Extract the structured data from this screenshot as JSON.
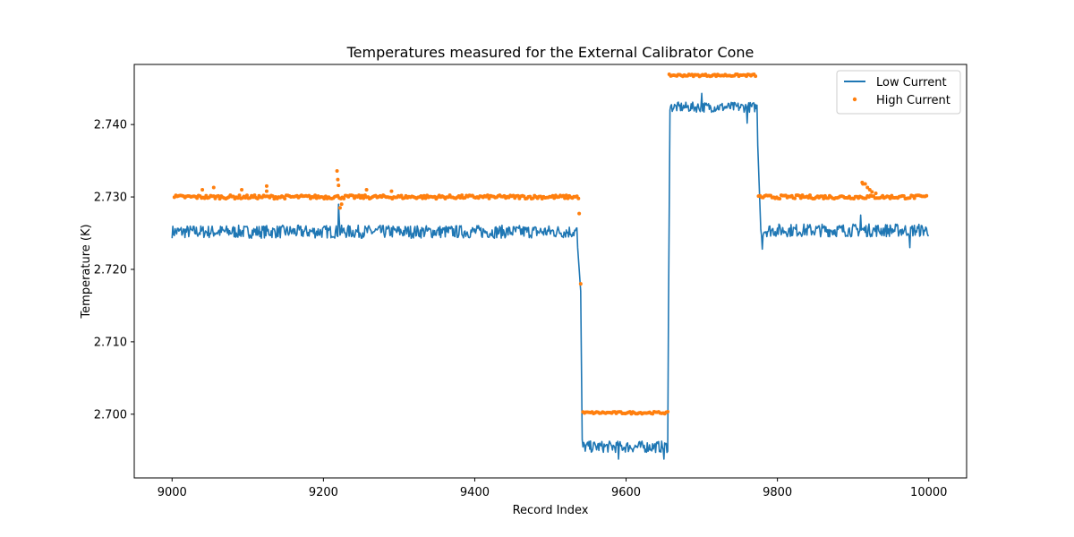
{
  "chart_data": {
    "type": "line",
    "title": "Temperatures measured for the External Calibrator Cone",
    "xlabel": "Record Index",
    "ylabel": "Temperature (K)",
    "xlim": [
      8950,
      10050
    ],
    "ylim": [
      2.6912,
      2.7483
    ],
    "xticks": [
      9000,
      9200,
      9400,
      9600,
      9800,
      10000
    ],
    "yticks": [
      2.7,
      2.71,
      2.72,
      2.73,
      2.74
    ],
    "ytick_labels": [
      "2.700",
      "2.710",
      "2.720",
      "2.730",
      "2.740"
    ],
    "legend_position": "top-right",
    "series": [
      {
        "name": "Low Current",
        "style": "line",
        "color": "#1f77b4",
        "x_start": 9000,
        "x_end": 10000,
        "segments": [
          {
            "from": 9000,
            "to": 9535,
            "mean": 2.7252,
            "noise": 0.0009
          },
          {
            "from": 9535,
            "to": 9540,
            "mean": 2.7245,
            "noise": 0.0005,
            "ramp_to": 2.717
          },
          {
            "from": 9540,
            "to": 9542,
            "mean": 2.717,
            "noise": 0.0,
            "ramp_to": 2.6965
          },
          {
            "from": 9542,
            "to": 9655,
            "mean": 2.6955,
            "noise": 0.0008
          },
          {
            "from": 9655,
            "to": 9658,
            "mean": 2.7,
            "noise": 0.0,
            "ramp_to": 2.742
          },
          {
            "from": 9658,
            "to": 9773,
            "mean": 2.7424,
            "noise": 0.0007
          },
          {
            "from": 9773,
            "to": 9778,
            "mean": 2.74,
            "noise": 0.0,
            "ramp_to": 2.7255
          },
          {
            "from": 9778,
            "to": 10000,
            "mean": 2.7254,
            "noise": 0.0009
          }
        ],
        "spikes": [
          {
            "x": 9220,
            "y": 2.729
          },
          {
            "x": 9221,
            "y": 2.7268
          },
          {
            "x": 9780,
            "y": 2.7228
          },
          {
            "x": 9700,
            "y": 2.7443
          },
          {
            "x": 9760,
            "y": 2.7402
          },
          {
            "x": 9590,
            "y": 2.6938
          },
          {
            "x": 9650,
            "y": 2.6938
          },
          {
            "x": 9910,
            "y": 2.7275
          },
          {
            "x": 9975,
            "y": 2.723
          }
        ]
      },
      {
        "name": "High Current",
        "style": "scatter",
        "color": "#ff7f0e",
        "x_start": 9003,
        "x_end": 9997,
        "segments": [
          {
            "from": 9003,
            "to": 9537,
            "mean": 2.73,
            "noise": 0.00025
          },
          {
            "from": 9543,
            "to": 9655,
            "mean": 2.7002,
            "noise": 0.00015
          },
          {
            "from": 9657,
            "to": 9772,
            "mean": 2.7468,
            "noise": 0.00015
          },
          {
            "from": 9775,
            "to": 9997,
            "mean": 2.73,
            "noise": 0.00025
          }
        ],
        "outliers": [
          {
            "x": 9218,
            "y": 2.7336
          },
          {
            "x": 9219,
            "y": 2.7324
          },
          {
            "x": 9220,
            "y": 2.7316
          },
          {
            "x": 9222,
            "y": 2.7285
          },
          {
            "x": 9224,
            "y": 2.729
          },
          {
            "x": 9040,
            "y": 2.731
          },
          {
            "x": 9055,
            "y": 2.7313
          },
          {
            "x": 9092,
            "y": 2.731
          },
          {
            "x": 9125,
            "y": 2.7315
          },
          {
            "x": 9125,
            "y": 2.7308
          },
          {
            "x": 9257,
            "y": 2.731
          },
          {
            "x": 9290,
            "y": 2.7308
          },
          {
            "x": 9538,
            "y": 2.7277
          },
          {
            "x": 9540,
            "y": 2.718
          },
          {
            "x": 9912,
            "y": 2.732
          },
          {
            "x": 9913,
            "y": 2.7318
          },
          {
            "x": 9916,
            "y": 2.7318
          },
          {
            "x": 9919,
            "y": 2.7313
          },
          {
            "x": 9922,
            "y": 2.731
          },
          {
            "x": 9925,
            "y": 2.7307
          },
          {
            "x": 9930,
            "y": 2.7305
          }
        ]
      }
    ]
  }
}
